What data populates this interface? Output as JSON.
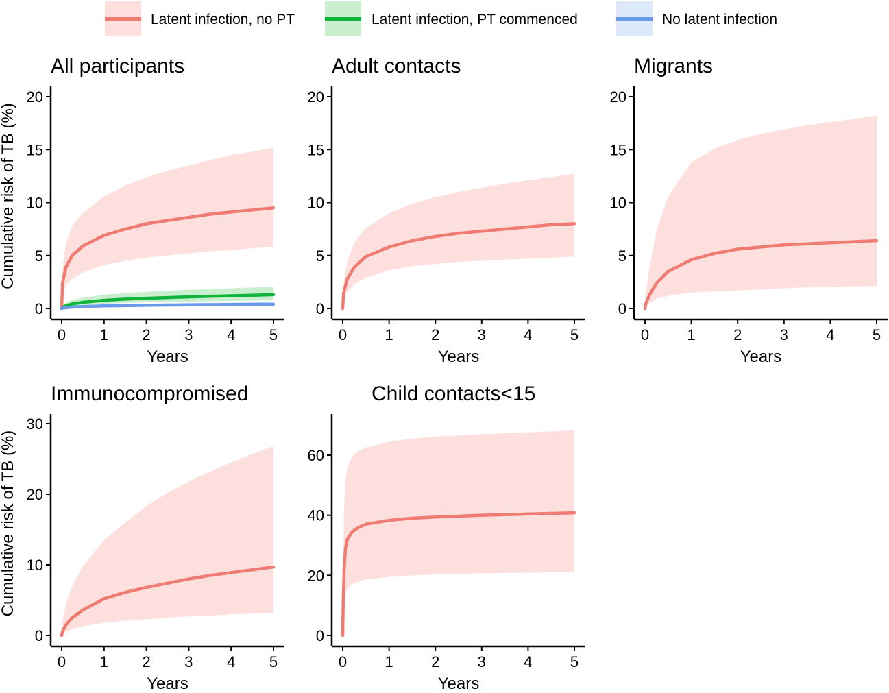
{
  "legend": [
    {
      "label": "Latent infection, no PT",
      "line_color": "#F07B72",
      "band_color": "#FDE0DD"
    },
    {
      "label": "Latent infection, PT commenced",
      "line_color": "#12B33A",
      "band_color": "#C9EFCF"
    },
    {
      "label": "No latent infection",
      "line_color": "#6A9BEB",
      "band_color": "#DCE9FA"
    }
  ],
  "chart_data": [
    {
      "type": "line",
      "title": "All participants",
      "xlabel": "Years",
      "ylabel": "Cumulative risk of TB (%)",
      "xlim": [
        0,
        5
      ],
      "ylim": [
        0,
        20
      ],
      "xticks": [
        0,
        1,
        2,
        3,
        4,
        5
      ],
      "yticks": [
        0,
        5,
        10,
        15,
        20
      ],
      "x": [
        0,
        0.02,
        0.1,
        0.25,
        0.5,
        1,
        1.5,
        2,
        2.5,
        3,
        3.5,
        4,
        4.5,
        5
      ],
      "series": [
        {
          "name": "Latent infection, no PT",
          "color": "#F07B72",
          "band_color": "#FDE0DD",
          "y": [
            0,
            2.4,
            3.9,
            5.0,
            5.9,
            6.9,
            7.5,
            8.0,
            8.3,
            8.6,
            8.9,
            9.1,
            9.3,
            9.5
          ],
          "lower": [
            0,
            1.2,
            2.2,
            2.8,
            3.4,
            4.1,
            4.5,
            4.8,
            5.0,
            5.2,
            5.4,
            5.5,
            5.7,
            5.8
          ],
          "upper": [
            0,
            3.8,
            6.2,
            7.8,
            9.0,
            10.6,
            11.6,
            12.4,
            13.0,
            13.5,
            14.0,
            14.5,
            14.8,
            15.2
          ]
        },
        {
          "name": "Latent infection, PT commenced",
          "color": "#12B33A",
          "band_color": "#C9EFCF",
          "y": [
            0,
            0.1,
            0.25,
            0.42,
            0.58,
            0.77,
            0.88,
            0.96,
            1.03,
            1.09,
            1.15,
            1.2,
            1.25,
            1.3
          ],
          "lower": [
            0,
            0.05,
            0.12,
            0.22,
            0.32,
            0.45,
            0.52,
            0.57,
            0.61,
            0.65,
            0.68,
            0.71,
            0.74,
            0.77
          ],
          "upper": [
            0,
            0.3,
            0.55,
            0.8,
            1.0,
            1.3,
            1.45,
            1.57,
            1.67,
            1.76,
            1.84,
            1.91,
            1.98,
            2.05
          ]
        },
        {
          "name": "No latent infection",
          "color": "#6A9BEB",
          "band_color": "#DCE9FA",
          "y": [
            0,
            0.03,
            0.08,
            0.13,
            0.18,
            0.24,
            0.27,
            0.3,
            0.32,
            0.34,
            0.36,
            0.37,
            0.39,
            0.4
          ],
          "lower": [
            0,
            0.01,
            0.03,
            0.06,
            0.09,
            0.13,
            0.15,
            0.17,
            0.18,
            0.19,
            0.2,
            0.21,
            0.22,
            0.23
          ],
          "upper": [
            0,
            0.06,
            0.14,
            0.21,
            0.28,
            0.36,
            0.41,
            0.45,
            0.48,
            0.51,
            0.54,
            0.56,
            0.58,
            0.6
          ]
        }
      ]
    },
    {
      "type": "line",
      "title": "Adult contacts",
      "xlabel": "Years",
      "ylabel": "",
      "xlim": [
        0,
        5
      ],
      "ylim": [
        0,
        20
      ],
      "xticks": [
        0,
        1,
        2,
        3,
        4,
        5
      ],
      "yticks": [
        0,
        5,
        10,
        15,
        20
      ],
      "x": [
        0,
        0.02,
        0.1,
        0.25,
        0.5,
        1,
        1.5,
        2,
        2.5,
        3,
        3.5,
        4,
        4.5,
        5
      ],
      "series": [
        {
          "name": "Latent infection, no PT",
          "color": "#F07B72",
          "band_color": "#FDE0DD",
          "y": [
            0,
            1.5,
            2.8,
            3.9,
            4.9,
            5.8,
            6.4,
            6.8,
            7.1,
            7.3,
            7.5,
            7.7,
            7.9,
            8.0
          ],
          "lower": [
            0,
            0.8,
            1.6,
            2.3,
            2.9,
            3.6,
            4.0,
            4.2,
            4.4,
            4.5,
            4.6,
            4.7,
            4.8,
            4.9
          ],
          "upper": [
            0,
            2.4,
            4.5,
            6.2,
            7.6,
            9.0,
            9.9,
            10.5,
            11.0,
            11.4,
            11.8,
            12.1,
            12.4,
            12.7
          ]
        }
      ]
    },
    {
      "type": "line",
      "title": "Migrants",
      "xlabel": "Years",
      "ylabel": "",
      "xlim": [
        0,
        5
      ],
      "ylim": [
        0,
        20
      ],
      "xticks": [
        0,
        1,
        2,
        3,
        4,
        5
      ],
      "yticks": [
        0,
        5,
        10,
        15,
        20
      ],
      "x": [
        0,
        0.02,
        0.1,
        0.25,
        0.5,
        1,
        1.5,
        2,
        2.5,
        3,
        3.5,
        4,
        4.5,
        5
      ],
      "series": [
        {
          "name": "Latent infection, no PT",
          "color": "#F07B72",
          "band_color": "#FDE0DD",
          "y": [
            0,
            0.5,
            1.3,
            2.4,
            3.5,
            4.6,
            5.2,
            5.6,
            5.8,
            6.0,
            6.1,
            6.2,
            6.3,
            6.4
          ],
          "lower": [
            0,
            0.2,
            0.5,
            0.9,
            1.2,
            1.5,
            1.6,
            1.7,
            1.8,
            1.9,
            2.0,
            2.0,
            2.1,
            2.1
          ],
          "upper": [
            0,
            1.5,
            4.0,
            7.3,
            10.6,
            13.8,
            15.1,
            15.9,
            16.5,
            16.9,
            17.3,
            17.6,
            17.9,
            18.2
          ]
        }
      ]
    },
    {
      "type": "line",
      "title": "Immunocompromised",
      "xlabel": "Years",
      "ylabel": "Cumulative risk of TB (%)",
      "xlim": [
        0,
        5
      ],
      "ylim": [
        0,
        30
      ],
      "xticks": [
        0,
        1,
        2,
        3,
        4,
        5
      ],
      "yticks": [
        0,
        10,
        20,
        30
      ],
      "x": [
        0,
        0.02,
        0.1,
        0.25,
        0.5,
        1,
        1.5,
        2,
        2.5,
        3,
        3.5,
        4,
        4.5,
        5
      ],
      "series": [
        {
          "name": "Latent infection, no PT",
          "color": "#F07B72",
          "band_color": "#FDE0DD",
          "y": [
            0,
            0.6,
            1.5,
            2.5,
            3.6,
            5.2,
            6.1,
            6.8,
            7.4,
            8.0,
            8.5,
            8.9,
            9.3,
            9.7
          ],
          "lower": [
            0,
            0.2,
            0.5,
            0.9,
            1.3,
            1.8,
            2.1,
            2.3,
            2.5,
            2.7,
            2.8,
            3.0,
            3.1,
            3.2
          ],
          "upper": [
            0,
            2.0,
            4.5,
            7.0,
            9.8,
            13.5,
            16.0,
            18.3,
            20.2,
            21.8,
            23.2,
            24.5,
            25.7,
            26.8
          ]
        }
      ]
    },
    {
      "type": "line",
      "title": "Child contacts<15",
      "xlabel": "Years",
      "ylabel": "",
      "xlim": [
        0,
        5
      ],
      "ylim": [
        0,
        70
      ],
      "xticks": [
        0,
        1,
        2,
        3,
        4,
        5
      ],
      "yticks": [
        0,
        20,
        40,
        60
      ],
      "x": [
        0,
        0.01,
        0.03,
        0.06,
        0.1,
        0.2,
        0.35,
        0.5,
        1,
        1.5,
        2,
        2.5,
        3,
        3.5,
        4,
        4.5,
        5
      ],
      "series": [
        {
          "name": "Latent infection, no PT",
          "color": "#F07B72",
          "band_color": "#FDE0DD",
          "y": [
            0,
            10,
            22,
            29,
            32,
            34.5,
            36,
            37,
            38.3,
            39,
            39.4,
            39.7,
            40,
            40.2,
            40.4,
            40.6,
            40.8
          ],
          "lower": [
            0,
            5,
            11,
            14,
            15.5,
            17,
            18,
            18.6,
            19.5,
            20,
            20.3,
            20.5,
            20.7,
            20.8,
            20.9,
            21,
            21.1
          ],
          "upper": [
            0,
            22,
            42,
            52,
            56,
            59.5,
            61.5,
            62.5,
            64.5,
            65.5,
            66.2,
            66.6,
            67,
            67.3,
            67.6,
            67.9,
            68.2
          ]
        }
      ]
    }
  ]
}
